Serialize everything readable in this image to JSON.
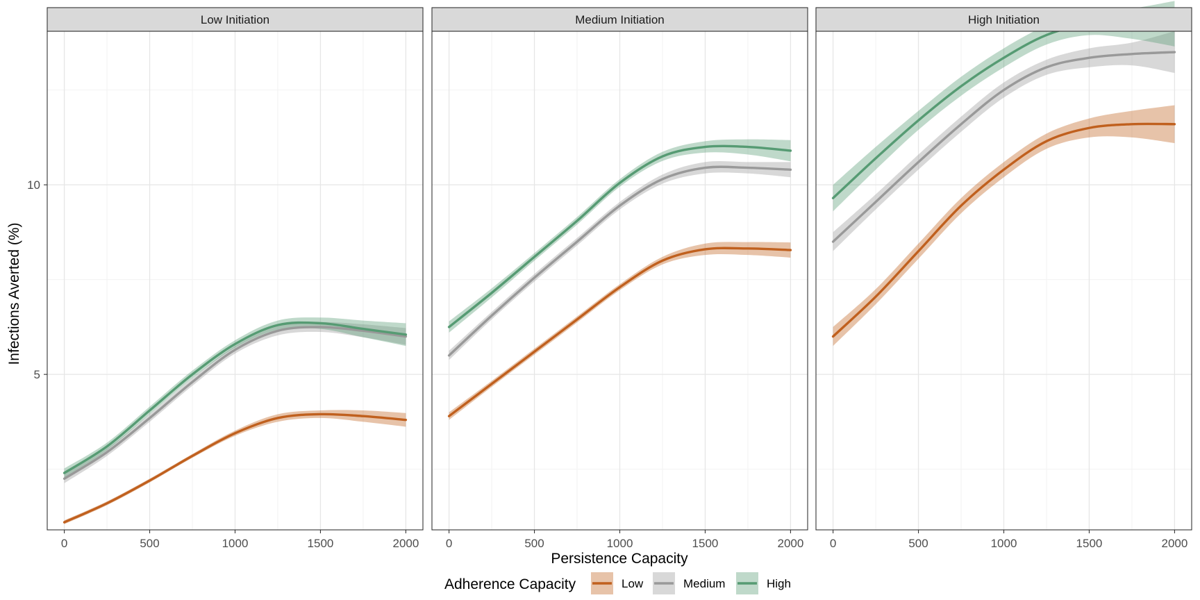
{
  "chart_data": {
    "type": "line",
    "facet_titles": [
      "Low Initiation",
      "Medium Initiation",
      "High Initiation"
    ],
    "xlabel": "Persistence Capacity",
    "ylabel": "Infections Averted (%)",
    "x_ticks": [
      0,
      500,
      1000,
      1500,
      2000
    ],
    "y_ticks": [
      5,
      10
    ],
    "xlim": [
      -100,
      2100
    ],
    "ylim": [
      0.9,
      14.05
    ],
    "grid": true,
    "legend": {
      "title": "Adherence Capacity",
      "position": "bottom",
      "entries": [
        "Low",
        "Medium",
        "High"
      ]
    },
    "colors": {
      "Low": "#c0601e",
      "Medium": "#999999",
      "High": "#569b73"
    },
    "x": [
      0,
      250,
      500,
      750,
      1000,
      1250,
      1500,
      1750,
      2000
    ],
    "panels": [
      {
        "title": "Low Initiation",
        "series": [
          {
            "name": "Low",
            "values": [
              1.1,
              1.6,
              2.2,
              2.85,
              3.45,
              3.85,
              3.95,
              3.9,
              3.8
            ],
            "band": [
              0.05,
              0.05,
              0.05,
              0.05,
              0.07,
              0.1,
              0.1,
              0.15,
              0.18
            ]
          },
          {
            "name": "Medium",
            "values": [
              2.25,
              2.95,
              3.85,
              4.8,
              5.65,
              6.15,
              6.25,
              6.15,
              6.0
            ],
            "band": [
              0.12,
              0.1,
              0.1,
              0.1,
              0.1,
              0.12,
              0.13,
              0.17,
              0.22
            ]
          },
          {
            "name": "High",
            "values": [
              2.4,
              3.1,
              4.05,
              5.0,
              5.8,
              6.3,
              6.35,
              6.2,
              6.05
            ],
            "band": [
              0.12,
              0.1,
              0.1,
              0.1,
              0.1,
              0.12,
              0.15,
              0.22,
              0.3
            ]
          }
        ]
      },
      {
        "title": "Medium Initiation",
        "series": [
          {
            "name": "Low",
            "values": [
              3.9,
              4.75,
              5.6,
              6.45,
              7.3,
              8.0,
              8.3,
              8.32,
              8.28
            ],
            "band": [
              0.1,
              0.08,
              0.08,
              0.08,
              0.08,
              0.1,
              0.15,
              0.17,
              0.2
            ]
          },
          {
            "name": "Medium",
            "values": [
              5.5,
              6.55,
              7.55,
              8.5,
              9.45,
              10.15,
              10.45,
              10.45,
              10.4
            ],
            "band": [
              0.12,
              0.1,
              0.1,
              0.1,
              0.1,
              0.12,
              0.15,
              0.15,
              0.2
            ]
          },
          {
            "name": "High",
            "values": [
              6.25,
              7.15,
              8.1,
              9.05,
              10.05,
              10.75,
              11.0,
              11.0,
              10.9
            ],
            "band": [
              0.15,
              0.12,
              0.1,
              0.1,
              0.1,
              0.12,
              0.15,
              0.2,
              0.28
            ]
          }
        ]
      },
      {
        "title": "High Initiation",
        "series": [
          {
            "name": "Low",
            "values": [
              6.0,
              7.05,
              8.25,
              9.45,
              10.4,
              11.15,
              11.5,
              11.6,
              11.6
            ],
            "band": [
              0.25,
              0.2,
              0.2,
              0.2,
              0.2,
              0.2,
              0.25,
              0.35,
              0.5
            ]
          },
          {
            "name": "Medium",
            "values": [
              8.5,
              9.55,
              10.6,
              11.6,
              12.5,
              13.1,
              13.35,
              13.45,
              13.5
            ],
            "band": [
              0.25,
              0.2,
              0.2,
              0.2,
              0.2,
              0.2,
              0.25,
              0.3,
              0.55
            ]
          },
          {
            "name": "High",
            "values": [
              9.65,
              10.7,
              11.7,
              12.6,
              13.35,
              13.95,
              14.25,
              14.25,
              14.25
            ],
            "band": [
              0.35,
              0.3,
              0.25,
              0.25,
              0.25,
              0.25,
              0.3,
              0.4,
              0.6
            ]
          }
        ]
      }
    ]
  }
}
